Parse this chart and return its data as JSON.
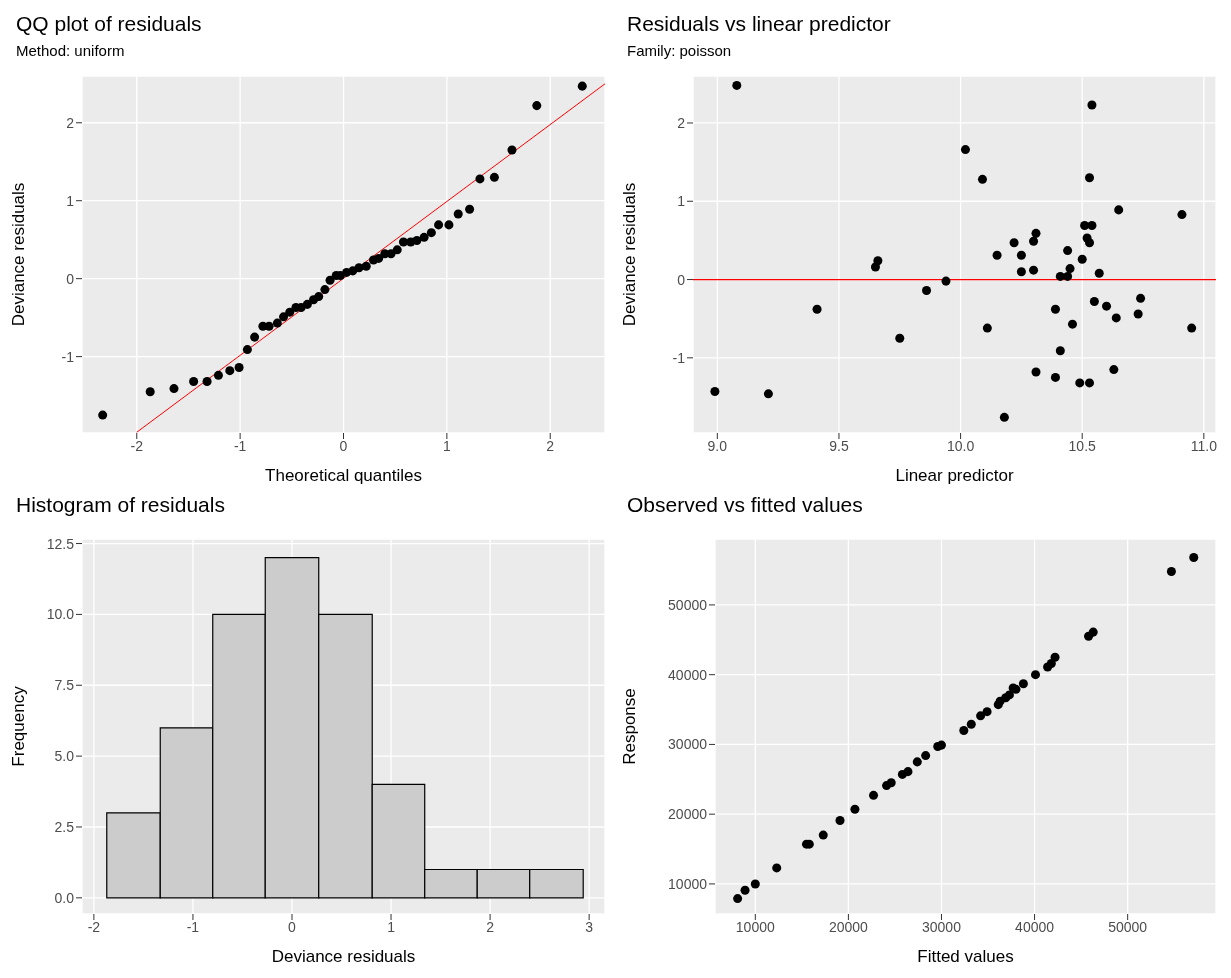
{
  "chart_data": [
    {
      "type": "scatter",
      "title": "QQ plot of residuals",
      "subtitle": "Method: uniform",
      "xlabel": "Theoretical quantiles",
      "ylabel": "Deviance residuals",
      "xlim": [
        -2.53,
        2.53
      ],
      "ylim": [
        -1.98,
        2.6
      ],
      "xticks": [
        -2,
        -1,
        0,
        1,
        2
      ],
      "yticks": [
        -1,
        0,
        1,
        2
      ],
      "grid": true,
      "marker": "circle",
      "series": [
        {
          "type": "scatter",
          "color": "#000000",
          "x": [
            -2.33,
            -1.87,
            -1.64,
            -1.45,
            -1.32,
            -1.21,
            -1.1,
            -1.01,
            -0.93,
            -0.86,
            -0.78,
            -0.72,
            -0.64,
            -0.58,
            -0.52,
            -0.46,
            -0.41,
            -0.35,
            -0.29,
            -0.24,
            -0.18,
            -0.13,
            -0.07,
            -0.03,
            0.03,
            0.09,
            0.15,
            0.22,
            0.29,
            0.34,
            0.4,
            0.46,
            0.52,
            0.58,
            0.65,
            0.71,
            0.78,
            0.85,
            0.92,
            1.02,
            1.11,
            1.22,
            1.32,
            1.46,
            1.63,
            1.87,
            2.31
          ],
          "values": [
            -1.75,
            -1.45,
            -1.41,
            -1.32,
            -1.32,
            -1.24,
            -1.18,
            -1.14,
            -0.91,
            -0.75,
            -0.61,
            -0.61,
            -0.57,
            -0.49,
            -0.43,
            -0.37,
            -0.37,
            -0.33,
            -0.27,
            -0.23,
            -0.14,
            -0.02,
            0.04,
            0.04,
            0.08,
            0.1,
            0.14,
            0.16,
            0.24,
            0.26,
            0.32,
            0.32,
            0.37,
            0.47,
            0.47,
            0.49,
            0.53,
            0.59,
            0.69,
            0.69,
            0.83,
            0.89,
            1.28,
            1.3,
            1.65,
            2.22,
            2.47
          ]
        },
        {
          "type": "line",
          "color": "#ff0000",
          "marker": "none",
          "x": [
            -2,
            2.53
          ],
          "values": [
            -1.97,
            2.5
          ]
        }
      ]
    },
    {
      "type": "scatter",
      "title": "Residuals vs linear predictor",
      "subtitle": "Family: poisson",
      "xlabel": "Linear predictor",
      "ylabel": "Deviance residuals",
      "xlim": [
        8.9,
        11.05
      ],
      "ylim": [
        -1.96,
        2.6
      ],
      "xticks": [
        {
          "value": 9,
          "label": "9.0"
        },
        9.5,
        {
          "value": 10,
          "label": "10.0"
        },
        10.5,
        {
          "value": 11,
          "label": "11.0"
        }
      ],
      "yticks": [
        -1,
        0,
        1,
        2
      ],
      "grid": true,
      "marker": "circle",
      "ref_lines": [
        {
          "axis": "y",
          "value": 0,
          "color": "#ff0000"
        }
      ],
      "series": [
        {
          "type": "scatter",
          "color": "#000000",
          "x": [
            8.99,
            9.08,
            9.21,
            9.41,
            9.65,
            9.66,
            9.75,
            9.86,
            9.94,
            10.02,
            10.09,
            10.11,
            10.15,
            10.18,
            10.22,
            10.25,
            10.25,
            10.3,
            10.3,
            10.31,
            10.31,
            10.39,
            10.39,
            10.41,
            10.41,
            10.44,
            10.44,
            10.45,
            10.46,
            10.49,
            10.5,
            10.51,
            10.52,
            10.53,
            10.53,
            10.53,
            10.54,
            10.54,
            10.55,
            10.57,
            10.6,
            10.63,
            10.64,
            10.65,
            10.73,
            10.74,
            10.91,
            10.95
          ],
          "values": [
            -1.43,
            2.48,
            -1.46,
            -0.38,
            0.16,
            0.24,
            -0.75,
            -0.14,
            -0.02,
            1.66,
            1.28,
            -0.62,
            0.31,
            -1.76,
            0.47,
            0.31,
            0.1,
            0.49,
            0.12,
            0.59,
            -1.18,
            -0.38,
            -1.25,
            0.04,
            -0.91,
            0.37,
            0.04,
            0.14,
            -0.57,
            -1.32,
            0.26,
            0.69,
            0.53,
            1.3,
            0.47,
            -1.32,
            2.23,
            0.69,
            -0.28,
            0.08,
            -0.34,
            -1.15,
            -0.49,
            0.89,
            -0.44,
            -0.24,
            0.83,
            -0.62
          ]
        }
      ]
    },
    {
      "type": "histogram",
      "title": "Histogram of residuals",
      "xlabel": "Deviance residuals",
      "ylabel": "Frequency",
      "xlim": [
        -2.12,
        3.16
      ],
      "ylim": [
        -0.57,
        12.66
      ],
      "xticks": [
        -2,
        -1,
        0,
        1,
        2,
        3
      ],
      "yticks": [
        {
          "value": 0,
          "label": "0.0"
        },
        2.5,
        {
          "value": 5,
          "label": "5.0"
        },
        7.5,
        {
          "value": 10,
          "label": "10.0"
        },
        12.5
      ],
      "grid": true,
      "color": "#cccccc",
      "bins": [
        -1.87,
        -1.33,
        -0.8,
        -0.27,
        0.27,
        0.81,
        1.34,
        1.87,
        2.4,
        2.94
      ],
      "values": [
        3,
        6,
        10,
        12,
        10,
        4,
        1,
        1,
        1
      ]
    },
    {
      "type": "scatter",
      "title": "Observed vs fitted values",
      "xlabel": "Fitted values",
      "ylabel": "Response",
      "xlim": [
        5670,
        59490
      ],
      "ylim": [
        5690,
        59450
      ],
      "xticks": [
        10000,
        20000,
        30000,
        40000,
        50000
      ],
      "yticks": [
        10000,
        20000,
        30000,
        40000,
        50000
      ],
      "grid": true,
      "marker": "circle",
      "series": [
        {
          "type": "scatter",
          "color": "#000000",
          "x": [
            8100,
            8900,
            10000,
            12300,
            15500,
            15800,
            17300,
            19100,
            20700,
            22700,
            24100,
            24600,
            25800,
            26400,
            27400,
            28300,
            29600,
            30000,
            32400,
            33200,
            34200,
            34900,
            36100,
            36300,
            36900,
            37300,
            37700,
            38000,
            38800,
            40100,
            41400,
            41800,
            42200,
            45800,
            46300,
            54700,
            57100
          ],
          "values": [
            7900,
            9100,
            10000,
            12300,
            15700,
            15700,
            17000,
            19100,
            20700,
            22700,
            24100,
            24500,
            25700,
            26100,
            27500,
            28400,
            29700,
            29900,
            32000,
            32900,
            34100,
            34700,
            35700,
            36200,
            36700,
            37100,
            38100,
            37900,
            38700,
            40000,
            41100,
            41600,
            42500,
            45500,
            46100,
            54800,
            56800
          ]
        }
      ]
    }
  ]
}
